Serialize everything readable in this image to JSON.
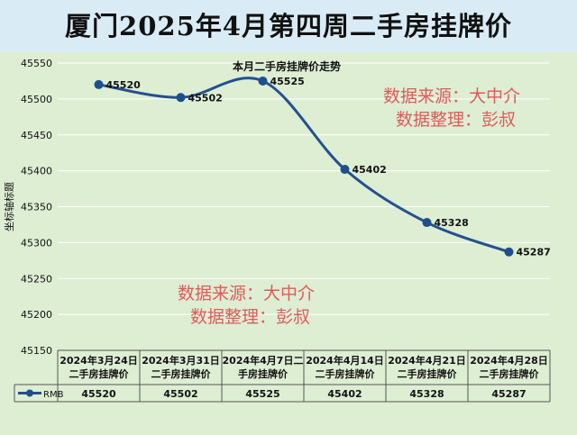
{
  "header": {
    "title": "厦门2025年4月第四周二手房挂牌价"
  },
  "watermarks": [
    {
      "line1": "数据来源：大中介",
      "line2": "数据整理：彭叔"
    },
    {
      "line1": "数据来源：大中介",
      "line2": "数据整理：彭叔"
    }
  ],
  "chart_data": {
    "type": "line",
    "title": "本月二手房挂牌价走势",
    "ylabel": "坐标轴标题",
    "ylim": [
      45150,
      45550
    ],
    "yticks": [
      45150,
      45200,
      45250,
      45300,
      45350,
      45400,
      45450,
      45500,
      45550
    ],
    "categories": [
      [
        "2024年3月24日",
        "二手房挂牌价"
      ],
      [
        "2024年3月31日",
        "二手房挂牌价"
      ],
      [
        "2024年4月7日二",
        "手房挂牌价"
      ],
      [
        "2024年4月14日",
        "二手房挂牌价"
      ],
      [
        "2024年4月21日",
        "二手房挂牌价"
      ],
      [
        "2024年4月28日",
        "二手房挂牌价"
      ]
    ],
    "series": [
      {
        "name": "RMB",
        "values": [
          45520,
          45502,
          45525,
          45402,
          45328,
          45287
        ]
      }
    ],
    "colors": {
      "line": "#24508f",
      "marker": "#1f4e8c",
      "grid": "#ffffff",
      "watermark": "#e05a5a"
    }
  }
}
